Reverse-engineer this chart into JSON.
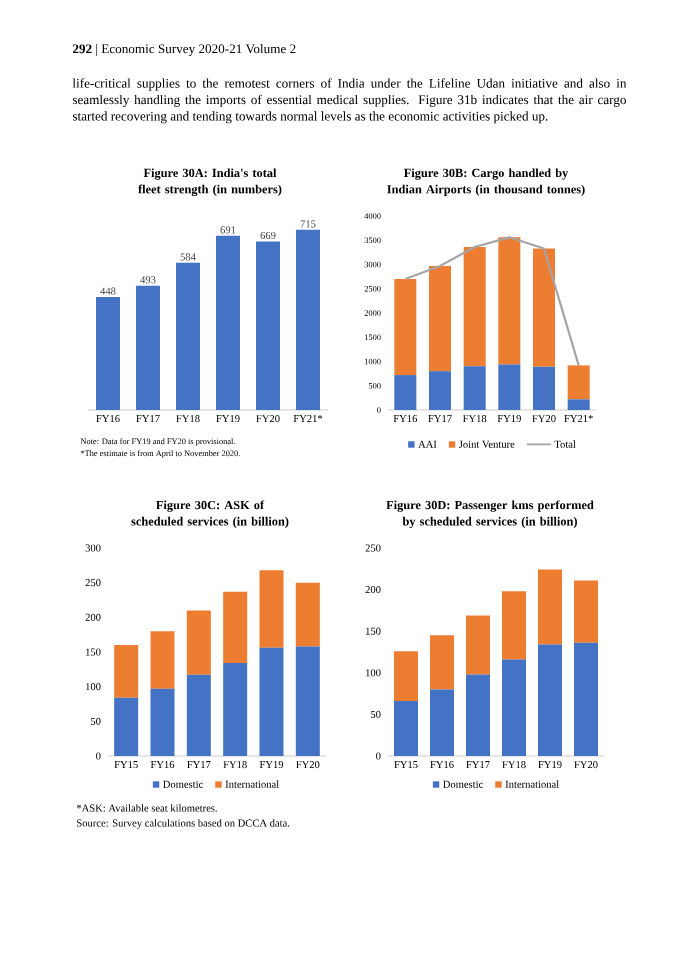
{
  "chart_data": [
    {
      "type": "bar",
      "title": "Figure 30A: India's total fleet strength (in numbers)",
      "categories": [
        "FY16",
        "FY17",
        "FY18",
        "FY19",
        "FY20",
        "FY21*"
      ],
      "values": [
        448,
        493,
        584,
        691,
        669,
        715
      ],
      "color": "#4472c4",
      "data_labels": true,
      "tick_labels": "x",
      "annotations": [
        "**292** | Economic Survey 2020-21 Volume 2",
        "life-critical supplies to the remotest corners of India under the Lifeline Udan initiative and also in seamlessly handling the imports of essential medical supplies. Figure 31b indicates that the air cargo started recovering and tending towards normal levels as the economic activities picked up.",
        "Note: Data for FY19 and FY20 is provisional.",
        "*The estimate is from April to November 2020."
      ]
    },
    {
      "type": "bar",
      "title": "Figure 30B: Cargo handled by Indian Airports (in thousand tonnes)",
      "categories": [
        "FY16",
        "FY17",
        "FY18",
        "FY19",
        "FY20",
        "FY21*"
      ],
      "stacked": true,
      "ylim": [
        0,
        4000
      ],
      "yticks": [
        0,
        500,
        1000,
        1500,
        2000,
        2500,
        3000,
        3500,
        4000
      ],
      "legend": "bottom",
      "series": [
        {
          "name": "AAI",
          "color": "#4472c4",
          "values": [
            720,
            800,
            900,
            940,
            890,
            220
          ]
        },
        {
          "name": "Joint Venture",
          "color": "#ed7d31",
          "values": [
            1980,
            2170,
            2460,
            2620,
            2440,
            700
          ]
        },
        {
          "name": "Total",
          "type": "line",
          "color": "#a5a5a5",
          "values": [
            2700,
            2970,
            3360,
            3560,
            3330,
            920
          ]
        }
      ]
    },
    {
      "type": "bar",
      "title": "Figure 30C: ASK of scheduled services (in billion)",
      "categories": [
        "FY15",
        "FY16",
        "FY17",
        "FY18",
        "FY19",
        "FY20"
      ],
      "stacked": true,
      "ylim": [
        0,
        300
      ],
      "yticks": [
        0,
        50,
        100,
        150,
        200,
        250,
        300
      ],
      "legend": "bottom",
      "annotations": [
        "*ASK: Available seat kilometres.",
        "Source: Survey calculations based on DCCA data."
      ],
      "series": [
        {
          "name": "Domestic",
          "color": "#4472c4",
          "values": [
            84,
            97,
            117,
            134,
            156,
            158
          ]
        },
        {
          "name": "International",
          "color": "#ed7d31",
          "values": [
            76,
            83,
            93,
            103,
            112,
            92
          ]
        }
      ]
    },
    {
      "type": "bar",
      "title": "Figure 30D: Passenger kms performed by scheduled services (in billion)",
      "categories": [
        "FY15",
        "FY16",
        "FY17",
        "FY18",
        "FY19",
        "FY20"
      ],
      "stacked": true,
      "ylim": [
        0,
        250
      ],
      "yticks": [
        0,
        50,
        100,
        150,
        200,
        250
      ],
      "legend": "bottom",
      "series": [
        {
          "name": "Domestic",
          "color": "#4472c4",
          "values": [
            66,
            80,
            98,
            116,
            134,
            136
          ]
        },
        {
          "name": "International",
          "color": "#ed7d31",
          "values": [
            60,
            65,
            71,
            82,
            90,
            75
          ]
        }
      ]
    }
  ]
}
